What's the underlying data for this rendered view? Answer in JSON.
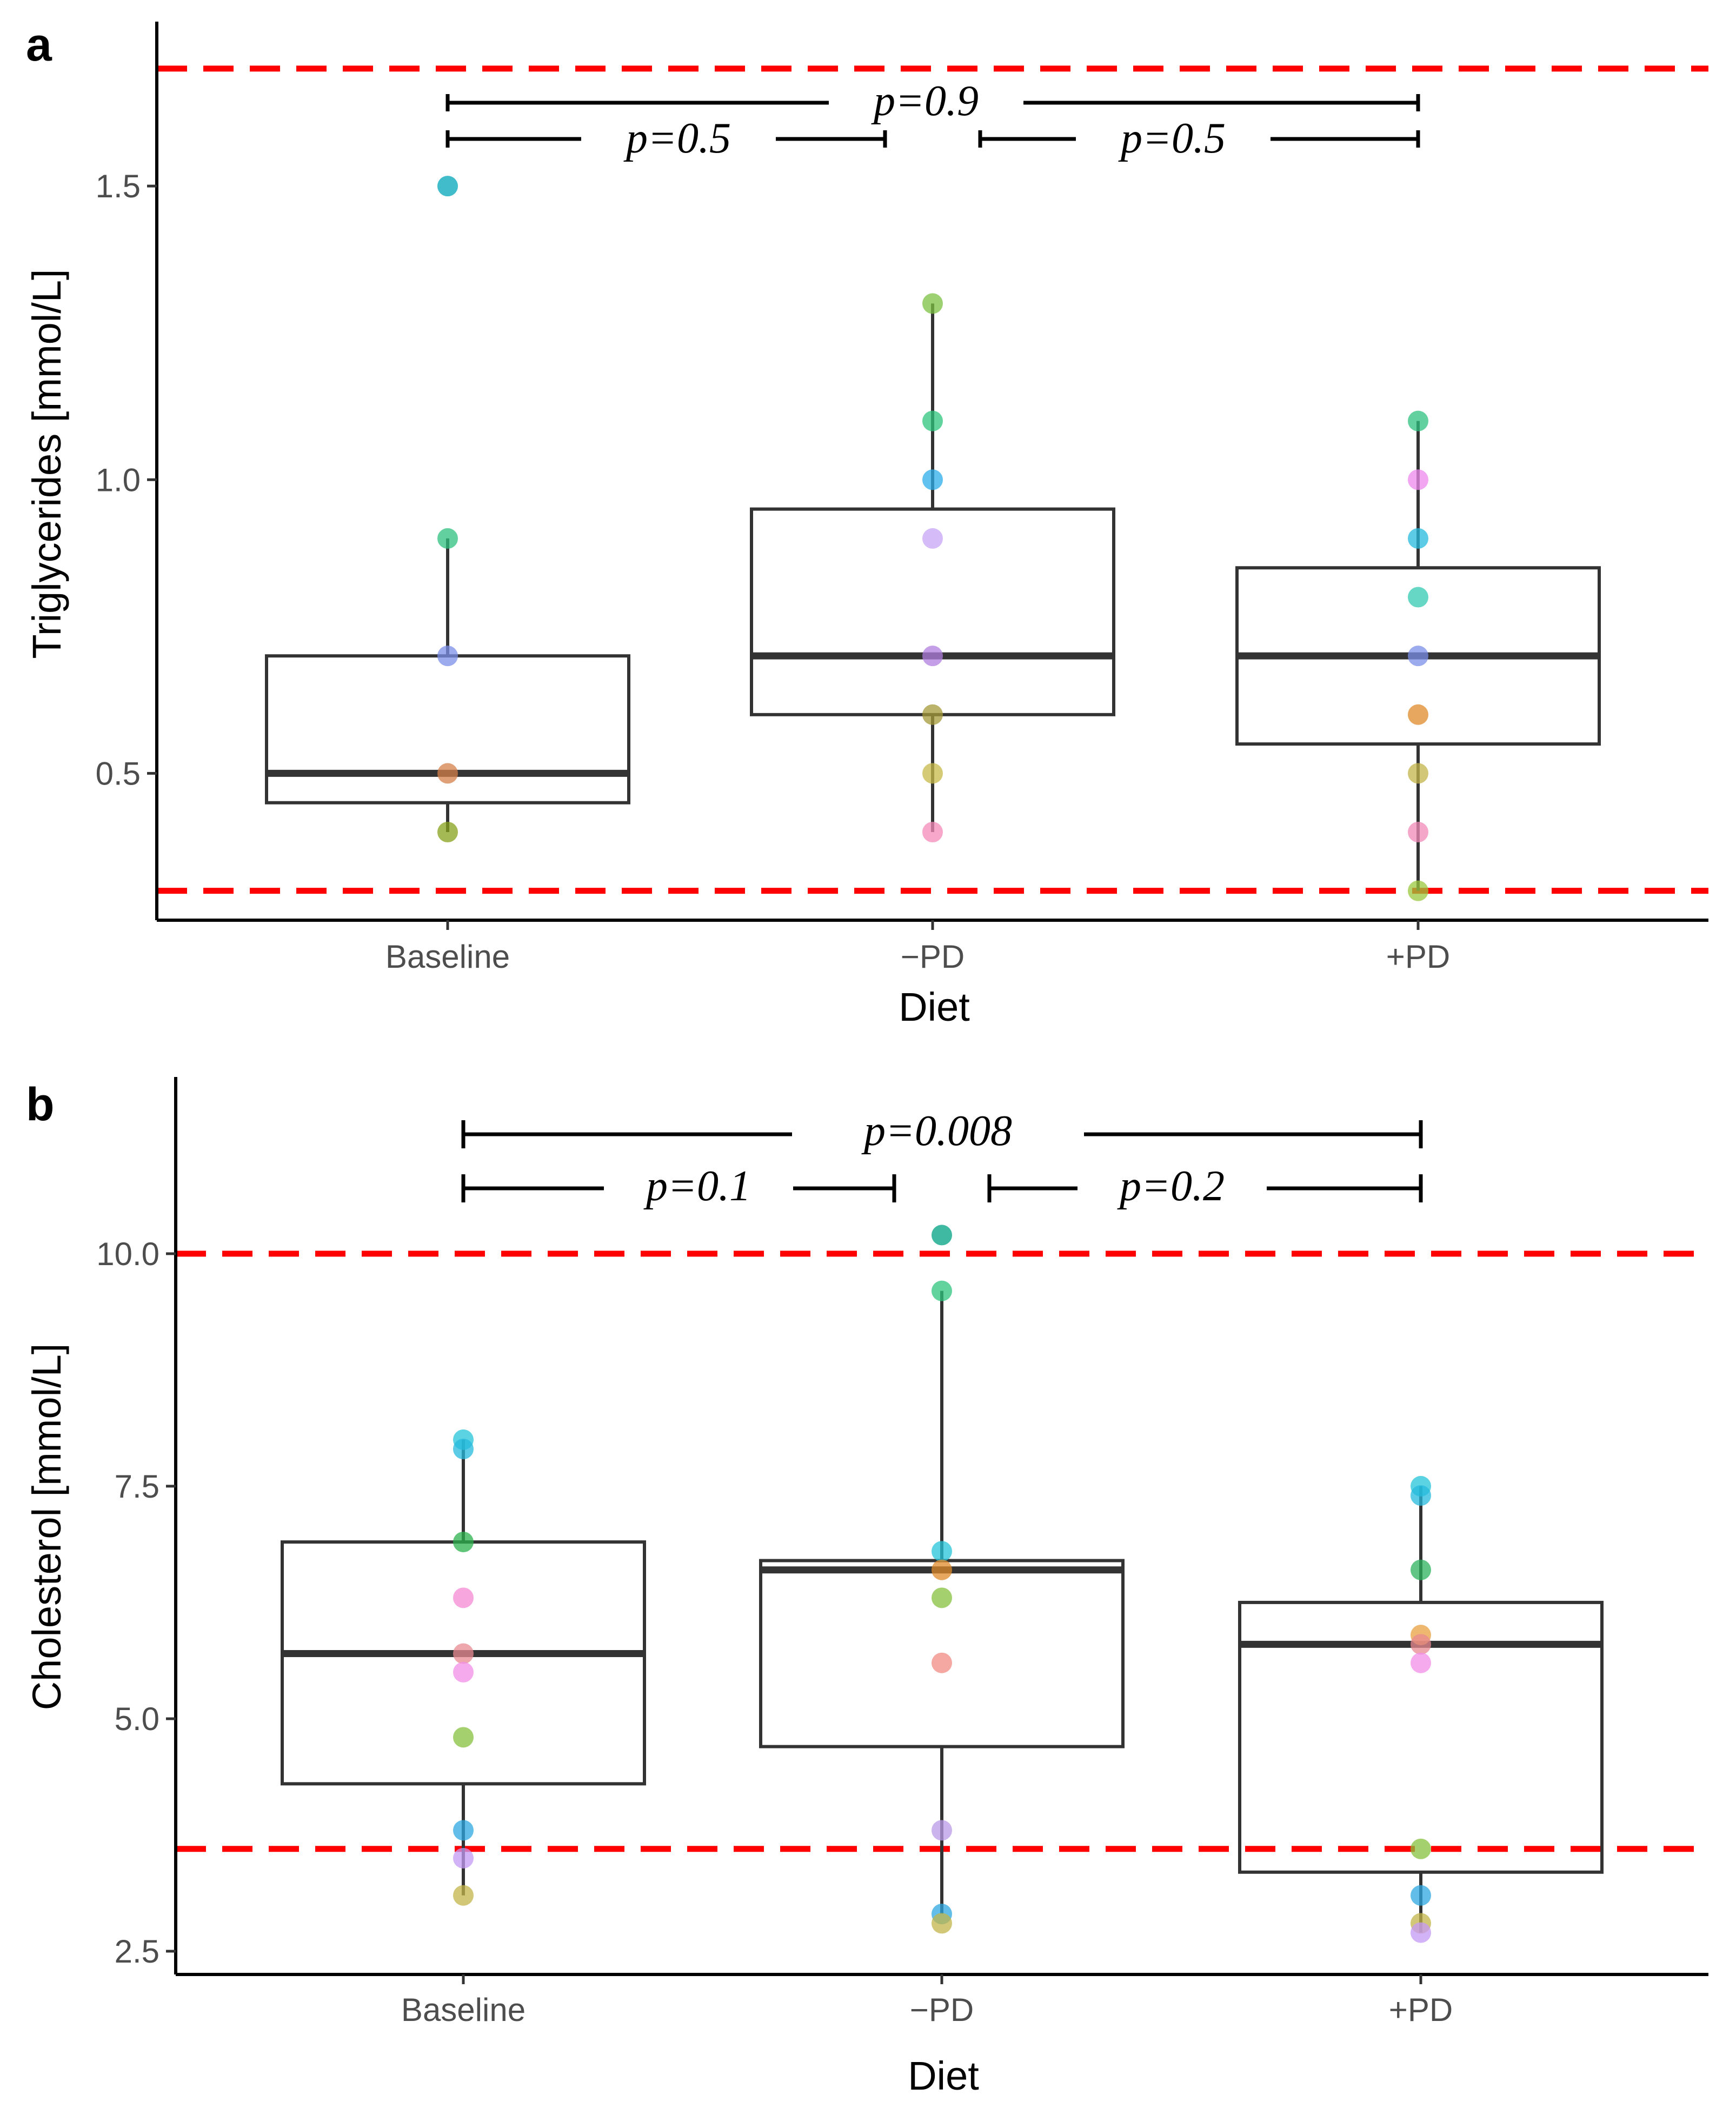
{
  "chart_data": [
    {
      "panel": "a",
      "type": "box",
      "xlabel": "Diet",
      "ylabel": "Triglycerides [mmol/L]",
      "categories": [
        "Baseline",
        "−PD",
        "+PD"
      ],
      "ylim": [
        0.25,
        1.78
      ],
      "yticks": [
        0.5,
        1.0,
        1.5
      ],
      "ytick_labels": [
        "0.5",
        "1.0",
        "1.5"
      ],
      "reference_lines": [
        1.7,
        0.3
      ],
      "reference_color": "#ff0000",
      "boxes": [
        {
          "q1": 0.45,
          "median": 0.5,
          "q3": 0.7,
          "whisker_low": 0.4,
          "whisker_high": 0.9
        },
        {
          "q1": 0.6,
          "median": 0.7,
          "q3": 0.95,
          "whisker_low": 0.4,
          "whisker_high": 1.3
        },
        {
          "q1": 0.55,
          "median": 0.7,
          "q3": 0.85,
          "whisker_low": 0.3,
          "whisker_high": 1.1
        }
      ],
      "points": [
        [
          {
            "value": 1.5,
            "color": "#00a5b8"
          },
          {
            "value": 0.9,
            "color": "#2fc17f"
          },
          {
            "value": 0.7,
            "color": "#7b8ee8"
          },
          {
            "value": 0.5,
            "color": "#d4804a"
          },
          {
            "value": 0.4,
            "color": "#86a11a"
          }
        ],
        [
          {
            "value": 1.3,
            "color": "#7cc040"
          },
          {
            "value": 1.1,
            "color": "#2ec47c"
          },
          {
            "value": 1.0,
            "color": "#2eaee9"
          },
          {
            "value": 0.9,
            "color": "#c7a4f5"
          },
          {
            "value": 0.7,
            "color": "#b07fe0"
          },
          {
            "value": 0.6,
            "color": "#a59a3a"
          },
          {
            "value": 0.5,
            "color": "#c7b94a"
          },
          {
            "value": 0.4,
            "color": "#f48ab8"
          }
        ],
        [
          {
            "value": 1.1,
            "color": "#2fc17f"
          },
          {
            "value": 1.0,
            "color": "#ee88ee"
          },
          {
            "value": 0.9,
            "color": "#25b9dd"
          },
          {
            "value": 0.8,
            "color": "#33c9b2"
          },
          {
            "value": 0.7,
            "color": "#7b8ee8"
          },
          {
            "value": 0.6,
            "color": "#e08a2a"
          },
          {
            "value": 0.5,
            "color": "#c2b44a"
          },
          {
            "value": 0.4,
            "color": "#f28ab8"
          },
          {
            "value": 0.3,
            "color": "#99c93d"
          }
        ]
      ],
      "comparisons": [
        {
          "from": 0,
          "to": 2,
          "label": "p=0.9"
        },
        {
          "from": 0,
          "to": 1,
          "label": "p=0.5"
        },
        {
          "from": 1,
          "to": 2,
          "label": "p=0.5"
        }
      ]
    },
    {
      "panel": "b",
      "type": "box",
      "xlabel": "Diet",
      "ylabel": "Cholesterol [mmol/L]",
      "categories": [
        "Baseline",
        "−PD",
        "+PD"
      ],
      "ylim": [
        2.25,
        11.9
      ],
      "yticks": [
        2.5,
        5.0,
        7.5,
        10.0
      ],
      "ytick_labels": [
        "2.5",
        "5.0",
        "7.5",
        "10.0"
      ],
      "reference_lines": [
        10.0,
        3.6
      ],
      "reference_color": "#ff0000",
      "boxes": [
        {
          "q1": 4.3,
          "median": 5.7,
          "q3": 6.9,
          "whisker_low": 3.1,
          "whisker_high": 8.0
        },
        {
          "q1": 4.7,
          "median": 6.6,
          "q3": 6.7,
          "whisker_low": 2.9,
          "whisker_high": 9.6
        },
        {
          "q1": 3.35,
          "median": 5.8,
          "q3": 6.25,
          "whisker_low": 2.7,
          "whisker_high": 7.5
        }
      ],
      "points": [
        [
          {
            "value": 8.0,
            "color": "#25c4d8"
          },
          {
            "value": 7.9,
            "color": "#25b9dd"
          },
          {
            "value": 6.9,
            "color": "#2bb24c"
          },
          {
            "value": 6.3,
            "color": "#f58ad3"
          },
          {
            "value": 5.7,
            "color": "#e88a90"
          },
          {
            "value": 5.5,
            "color": "#f38ee8"
          },
          {
            "value": 4.8,
            "color": "#86c23e"
          },
          {
            "value": 3.8,
            "color": "#2ea8e0"
          },
          {
            "value": 3.5,
            "color": "#c49af5"
          },
          {
            "value": 3.1,
            "color": "#c2b44a"
          }
        ],
        [
          {
            "value": 10.2,
            "color": "#00a184"
          },
          {
            "value": 9.6,
            "color": "#2ec47c"
          },
          {
            "value": 6.8,
            "color": "#25c4d8"
          },
          {
            "value": 6.6,
            "color": "#e08a2a"
          },
          {
            "value": 6.3,
            "color": "#86c23e"
          },
          {
            "value": 5.6,
            "color": "#f28a82"
          },
          {
            "value": 3.8,
            "color": "#b99ae8"
          },
          {
            "value": 2.9,
            "color": "#2ea8e0"
          },
          {
            "value": 2.8,
            "color": "#c2b44a"
          }
        ],
        [
          {
            "value": 7.5,
            "color": "#25c4d8"
          },
          {
            "value": 7.4,
            "color": "#25b9dd"
          },
          {
            "value": 6.6,
            "color": "#2bb25c"
          },
          {
            "value": 5.9,
            "color": "#e8a040"
          },
          {
            "value": 5.8,
            "color": "#e88a90"
          },
          {
            "value": 5.6,
            "color": "#f38ee8"
          },
          {
            "value": 3.6,
            "color": "#86c23e"
          },
          {
            "value": 3.1,
            "color": "#2ea8e0"
          },
          {
            "value": 2.8,
            "color": "#c2b44a"
          },
          {
            "value": 2.7,
            "color": "#c49af5"
          }
        ]
      ],
      "comparisons": [
        {
          "from": 0,
          "to": 2,
          "label": "p=0.008"
        },
        {
          "from": 0,
          "to": 1,
          "label": "p=0.1"
        },
        {
          "from": 1,
          "to": 2,
          "label": "p=0.2"
        }
      ]
    }
  ]
}
